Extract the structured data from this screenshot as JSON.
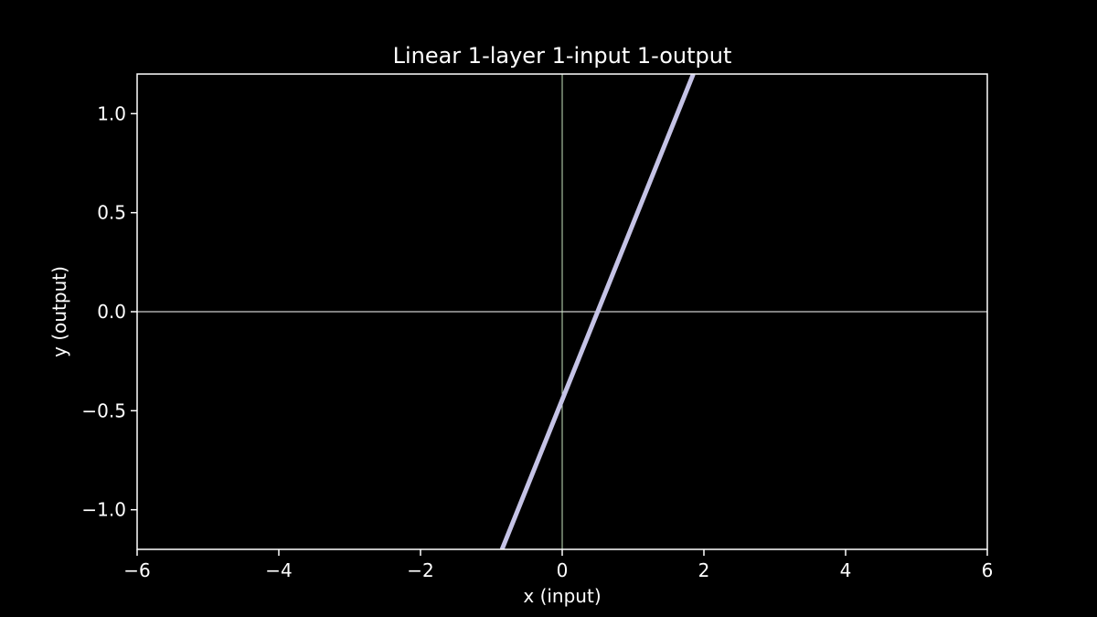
{
  "chart_data": {
    "type": "line",
    "title": "Linear 1-layer 1-input 1-output",
    "xlabel": "x (input)",
    "ylabel": "y (output)",
    "xlim": [
      -6,
      6
    ],
    "ylim": [
      -1.2,
      1.2
    ],
    "x_ticks": [
      -6,
      -4,
      -2,
      0,
      2,
      4,
      6
    ],
    "x_tick_labels": [
      "−6",
      "−4",
      "−2",
      "0",
      "2",
      "4",
      "6"
    ],
    "y_ticks": [
      -1.0,
      -0.5,
      0.0,
      0.5,
      1.0
    ],
    "y_tick_labels": [
      "−1.0",
      "−0.5",
      "0.0",
      "0.5",
      "1.0"
    ],
    "series": [
      {
        "x": [
          -0.85,
          1.85
        ],
        "y": [
          -1.2,
          1.2
        ],
        "color": "#c5c3e6"
      }
    ],
    "reference_lines": {
      "horizontal_y": 0,
      "horizontal_color": "#ffffff",
      "vertical_x": 0,
      "vertical_color": "#c8e6c0"
    },
    "colors": {
      "background": "#000000",
      "axes": "#ffffff",
      "text": "#ffffff"
    },
    "grid": false
  }
}
